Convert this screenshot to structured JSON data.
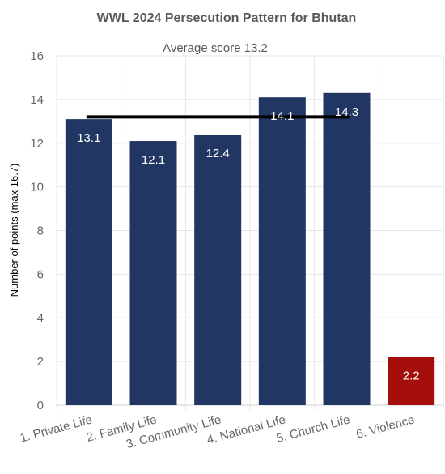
{
  "chart_data": {
    "type": "bar",
    "title": "WWL 2024 Persecution Pattern for Bhutan",
    "subtitle": "Average score 13.2",
    "ylabel": "Number of points (max 16.7)",
    "xlabel": "",
    "ylim": [
      0,
      16
    ],
    "yticks": [
      0,
      2,
      4,
      6,
      8,
      10,
      12,
      14,
      16
    ],
    "grid": true,
    "categories": [
      "1. Private Life",
      "2. Family Life",
      "3. Community Life",
      "4. National Life",
      "5. Church Life",
      "6. Violence"
    ],
    "values": [
      13.1,
      12.1,
      12.4,
      14.1,
      14.3,
      2.2
    ],
    "value_labels": [
      "13.1",
      "12.1",
      "12.4",
      "14.1",
      "14.3",
      "2.2"
    ],
    "bar_colors": [
      "#213662",
      "#213662",
      "#213662",
      "#213662",
      "#213662",
      "#a50f0b"
    ],
    "average": {
      "value": 13.2,
      "from_category": 0,
      "to_category": 4,
      "color": "#000000"
    }
  }
}
